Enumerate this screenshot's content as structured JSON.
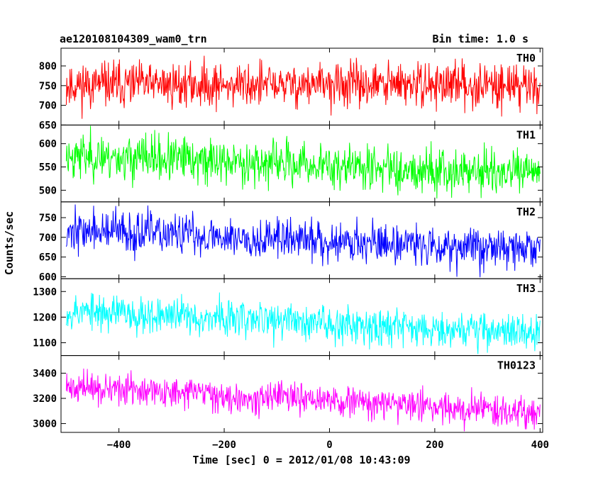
{
  "header": {
    "title": "ae120108104309_wam0_trn",
    "bin_time": "Bin time: 1.0 s"
  },
  "chart_data": {
    "type": "line",
    "ylabel": "Counts/sec",
    "xlabel": "Time [sec] 0 = 2012/01/08 10:43:09",
    "xlim": [
      -510,
      405
    ],
    "x_range_data": [
      -500,
      400
    ],
    "x_ticks": [
      -400,
      -200,
      0,
      200,
      400
    ],
    "x_tick_labels": [
      "−400",
      "−200",
      "0",
      "200",
      "400"
    ],
    "bin_time_s": 1.0,
    "panels": [
      {
        "name": "TH0",
        "color": "#ff0000",
        "ylim": [
          650,
          845
        ],
        "y_ticks": [
          650,
          700,
          750,
          800
        ],
        "y_tick_labels": [
          "650",
          "700",
          "750",
          "800"
        ],
        "mean_start": 752,
        "mean_end": 752,
        "noise": 28,
        "seed": 11
      },
      {
        "name": "TH1",
        "color": "#00ff00",
        "ylim": [
          475,
          640
        ],
        "y_ticks": [
          500,
          550,
          600
        ],
        "y_tick_labels": [
          "500",
          "550",
          "600"
        ],
        "mean_start": 575,
        "mean_end": 535,
        "noise": 24,
        "seed": 23
      },
      {
        "name": "TH2",
        "color": "#0000ff",
        "ylim": [
          595,
          790
        ],
        "y_ticks": [
          600,
          650,
          700,
          750
        ],
        "y_tick_labels": [
          "600",
          "650",
          "700",
          "750"
        ],
        "mean_start": 718,
        "mean_end": 670,
        "noise": 26,
        "seed": 37
      },
      {
        "name": "TH3",
        "color": "#00ffff",
        "ylim": [
          1050,
          1350
        ],
        "y_ticks": [
          1100,
          1200,
          1300
        ],
        "y_tick_labels": [
          "1100",
          "1200",
          "1300"
        ],
        "mean_start": 1225,
        "mean_end": 1140,
        "noise": 36,
        "seed": 53
      },
      {
        "name": "TH0123",
        "color": "#ff00ff",
        "ylim": [
          2930,
          3540
        ],
        "y_ticks": [
          3000,
          3200,
          3400
        ],
        "y_tick_labels": [
          "3000",
          "3200",
          "3400"
        ],
        "mean_start": 3290,
        "mean_end": 3090,
        "noise": 60,
        "seed": 71
      }
    ]
  }
}
